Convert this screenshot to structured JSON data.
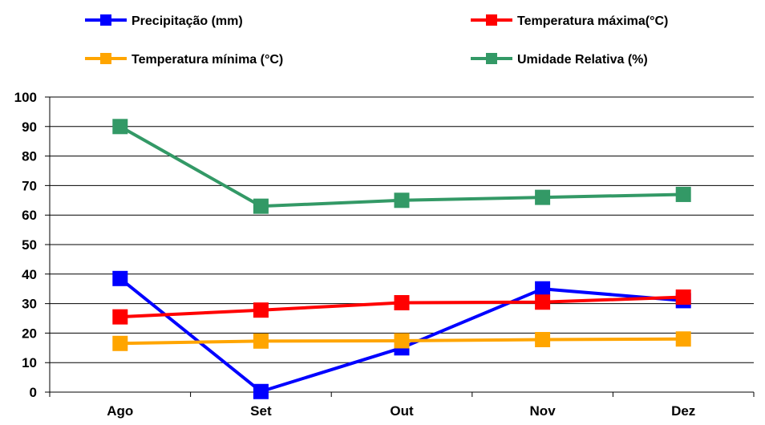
{
  "chart_data": {
    "type": "line",
    "categories": [
      "Ago",
      "Set",
      "Out",
      "Nov",
      "Dez"
    ],
    "ylim": [
      0,
      100
    ],
    "yticks": [
      0,
      10,
      20,
      30,
      40,
      50,
      60,
      70,
      80,
      90,
      100
    ],
    "grid": true,
    "legend_position": "top",
    "series": [
      {
        "name": "Precipitação (mm)",
        "color": "#0000ff",
        "values": [
          38.5,
          0.2,
          15,
          35,
          31
        ]
      },
      {
        "name": "Temperatura máxima(°C)",
        "color": "#ff0000",
        "values": [
          25.5,
          27.8,
          30.3,
          30.5,
          32.2
        ]
      },
      {
        "name": "Temperatura mínima (°C)",
        "color": "#ffa500",
        "values": [
          16.5,
          17.3,
          17.4,
          17.8,
          18
        ]
      },
      {
        "name": "Umidade Relativa (%)",
        "color": "#339966",
        "values": [
          90,
          63,
          65,
          66,
          67
        ]
      }
    ]
  }
}
